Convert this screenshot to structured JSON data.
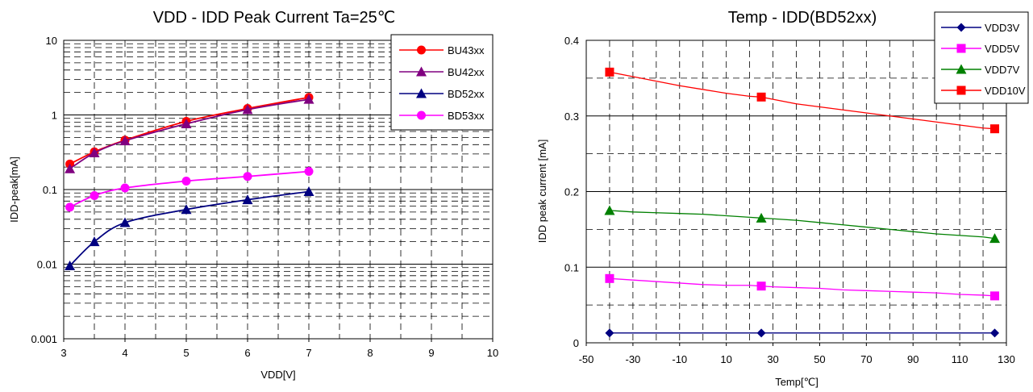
{
  "chart_data": [
    {
      "type": "line",
      "title": "VDD - IDD Peak Current Ta=25℃",
      "xlabel": "VDD[V]",
      "ylabel": "IDD-peak[mA]",
      "xlim": [
        3,
        10
      ],
      "ylim": [
        0.001,
        10
      ],
      "yscale": "log",
      "grid": true,
      "legend_position": "top-right",
      "x_ticks": [
        "3",
        "4",
        "5",
        "6",
        "7",
        "8",
        "9",
        "10"
      ],
      "y_ticks": [
        "0.001",
        "0.01",
        "0.1",
        "1",
        "10"
      ],
      "series": [
        {
          "name": "BU43xx",
          "color": "#ff0000",
          "marker": "circle",
          "x": [
            3.1,
            3.5,
            4,
            5,
            6,
            7
          ],
          "y": [
            0.22,
            0.32,
            0.46,
            0.82,
            1.22,
            1.72
          ]
        },
        {
          "name": "BU42xx",
          "color": "#800080",
          "marker": "triangle",
          "x": [
            3.1,
            3.5,
            4,
            5,
            6,
            7
          ],
          "y": [
            0.19,
            0.31,
            0.45,
            0.76,
            1.18,
            1.62
          ]
        },
        {
          "name": "BD52xx",
          "color": "#000080",
          "marker": "triangle",
          "x": [
            3.1,
            3.5,
            4,
            5,
            6,
            7
          ],
          "y": [
            0.0095,
            0.02,
            0.036,
            0.054,
            0.073,
            0.094
          ]
        },
        {
          "name": "BD53xx",
          "color": "#ff00ff",
          "marker": "circle",
          "x": [
            3.1,
            3.5,
            4,
            5,
            6,
            7
          ],
          "y": [
            0.058,
            0.083,
            0.105,
            0.13,
            0.15,
            0.175
          ]
        }
      ]
    },
    {
      "type": "line",
      "title": "Temp - IDD(BD52xx)",
      "xlabel": "Temp[℃]",
      "ylabel": "IDD peak current [mA]",
      "xlim": [
        -50,
        130
      ],
      "ylim": [
        0,
        0.4
      ],
      "grid": true,
      "legend_position": "top-right",
      "x_ticks": [
        "-50",
        "-30",
        "-10",
        "10",
        "30",
        "50",
        "70",
        "90",
        "110",
        "130"
      ],
      "y_ticks": [
        "0",
        "0.1",
        "0.2",
        "0.3",
        "0.4"
      ],
      "series": [
        {
          "name": "VDD3V",
          "color": "#000080",
          "marker": "diamond",
          "x": [
            -40,
            25,
            125
          ],
          "y": [
            0.013,
            0.013,
            0.013
          ]
        },
        {
          "name": "VDD5V",
          "color": "#ff00ff",
          "marker": "square",
          "x": [
            -40,
            -30,
            -20,
            -10,
            0,
            10,
            20,
            25,
            30,
            40,
            50,
            60,
            70,
            80,
            90,
            100,
            110,
            120,
            125
          ],
          "y": [
            0.085,
            0.083,
            0.081,
            0.079,
            0.077,
            0.076,
            0.076,
            0.075,
            0.074,
            0.073,
            0.072,
            0.07,
            0.069,
            0.068,
            0.067,
            0.066,
            0.064,
            0.063,
            0.062
          ]
        },
        {
          "name": "VDD7V",
          "color": "#008000",
          "marker": "triangle",
          "x": [
            -40,
            -30,
            -20,
            -10,
            0,
            10,
            20,
            25,
            30,
            40,
            50,
            60,
            70,
            80,
            90,
            100,
            110,
            120,
            125
          ],
          "y": [
            0.175,
            0.173,
            0.172,
            0.171,
            0.17,
            0.168,
            0.166,
            0.165,
            0.164,
            0.162,
            0.159,
            0.156,
            0.153,
            0.15,
            0.147,
            0.144,
            0.142,
            0.14,
            0.138
          ]
        },
        {
          "name": "VDD10V",
          "color": "#ff0000",
          "marker": "square",
          "x": [
            -40,
            -30,
            -20,
            -10,
            0,
            10,
            20,
            25,
            30,
            40,
            50,
            60,
            70,
            80,
            90,
            100,
            110,
            120,
            125
          ],
          "y": [
            0.358,
            0.352,
            0.346,
            0.34,
            0.335,
            0.33,
            0.326,
            0.325,
            0.322,
            0.316,
            0.312,
            0.308,
            0.304,
            0.3,
            0.296,
            0.292,
            0.288,
            0.284,
            0.283
          ]
        }
      ]
    }
  ]
}
